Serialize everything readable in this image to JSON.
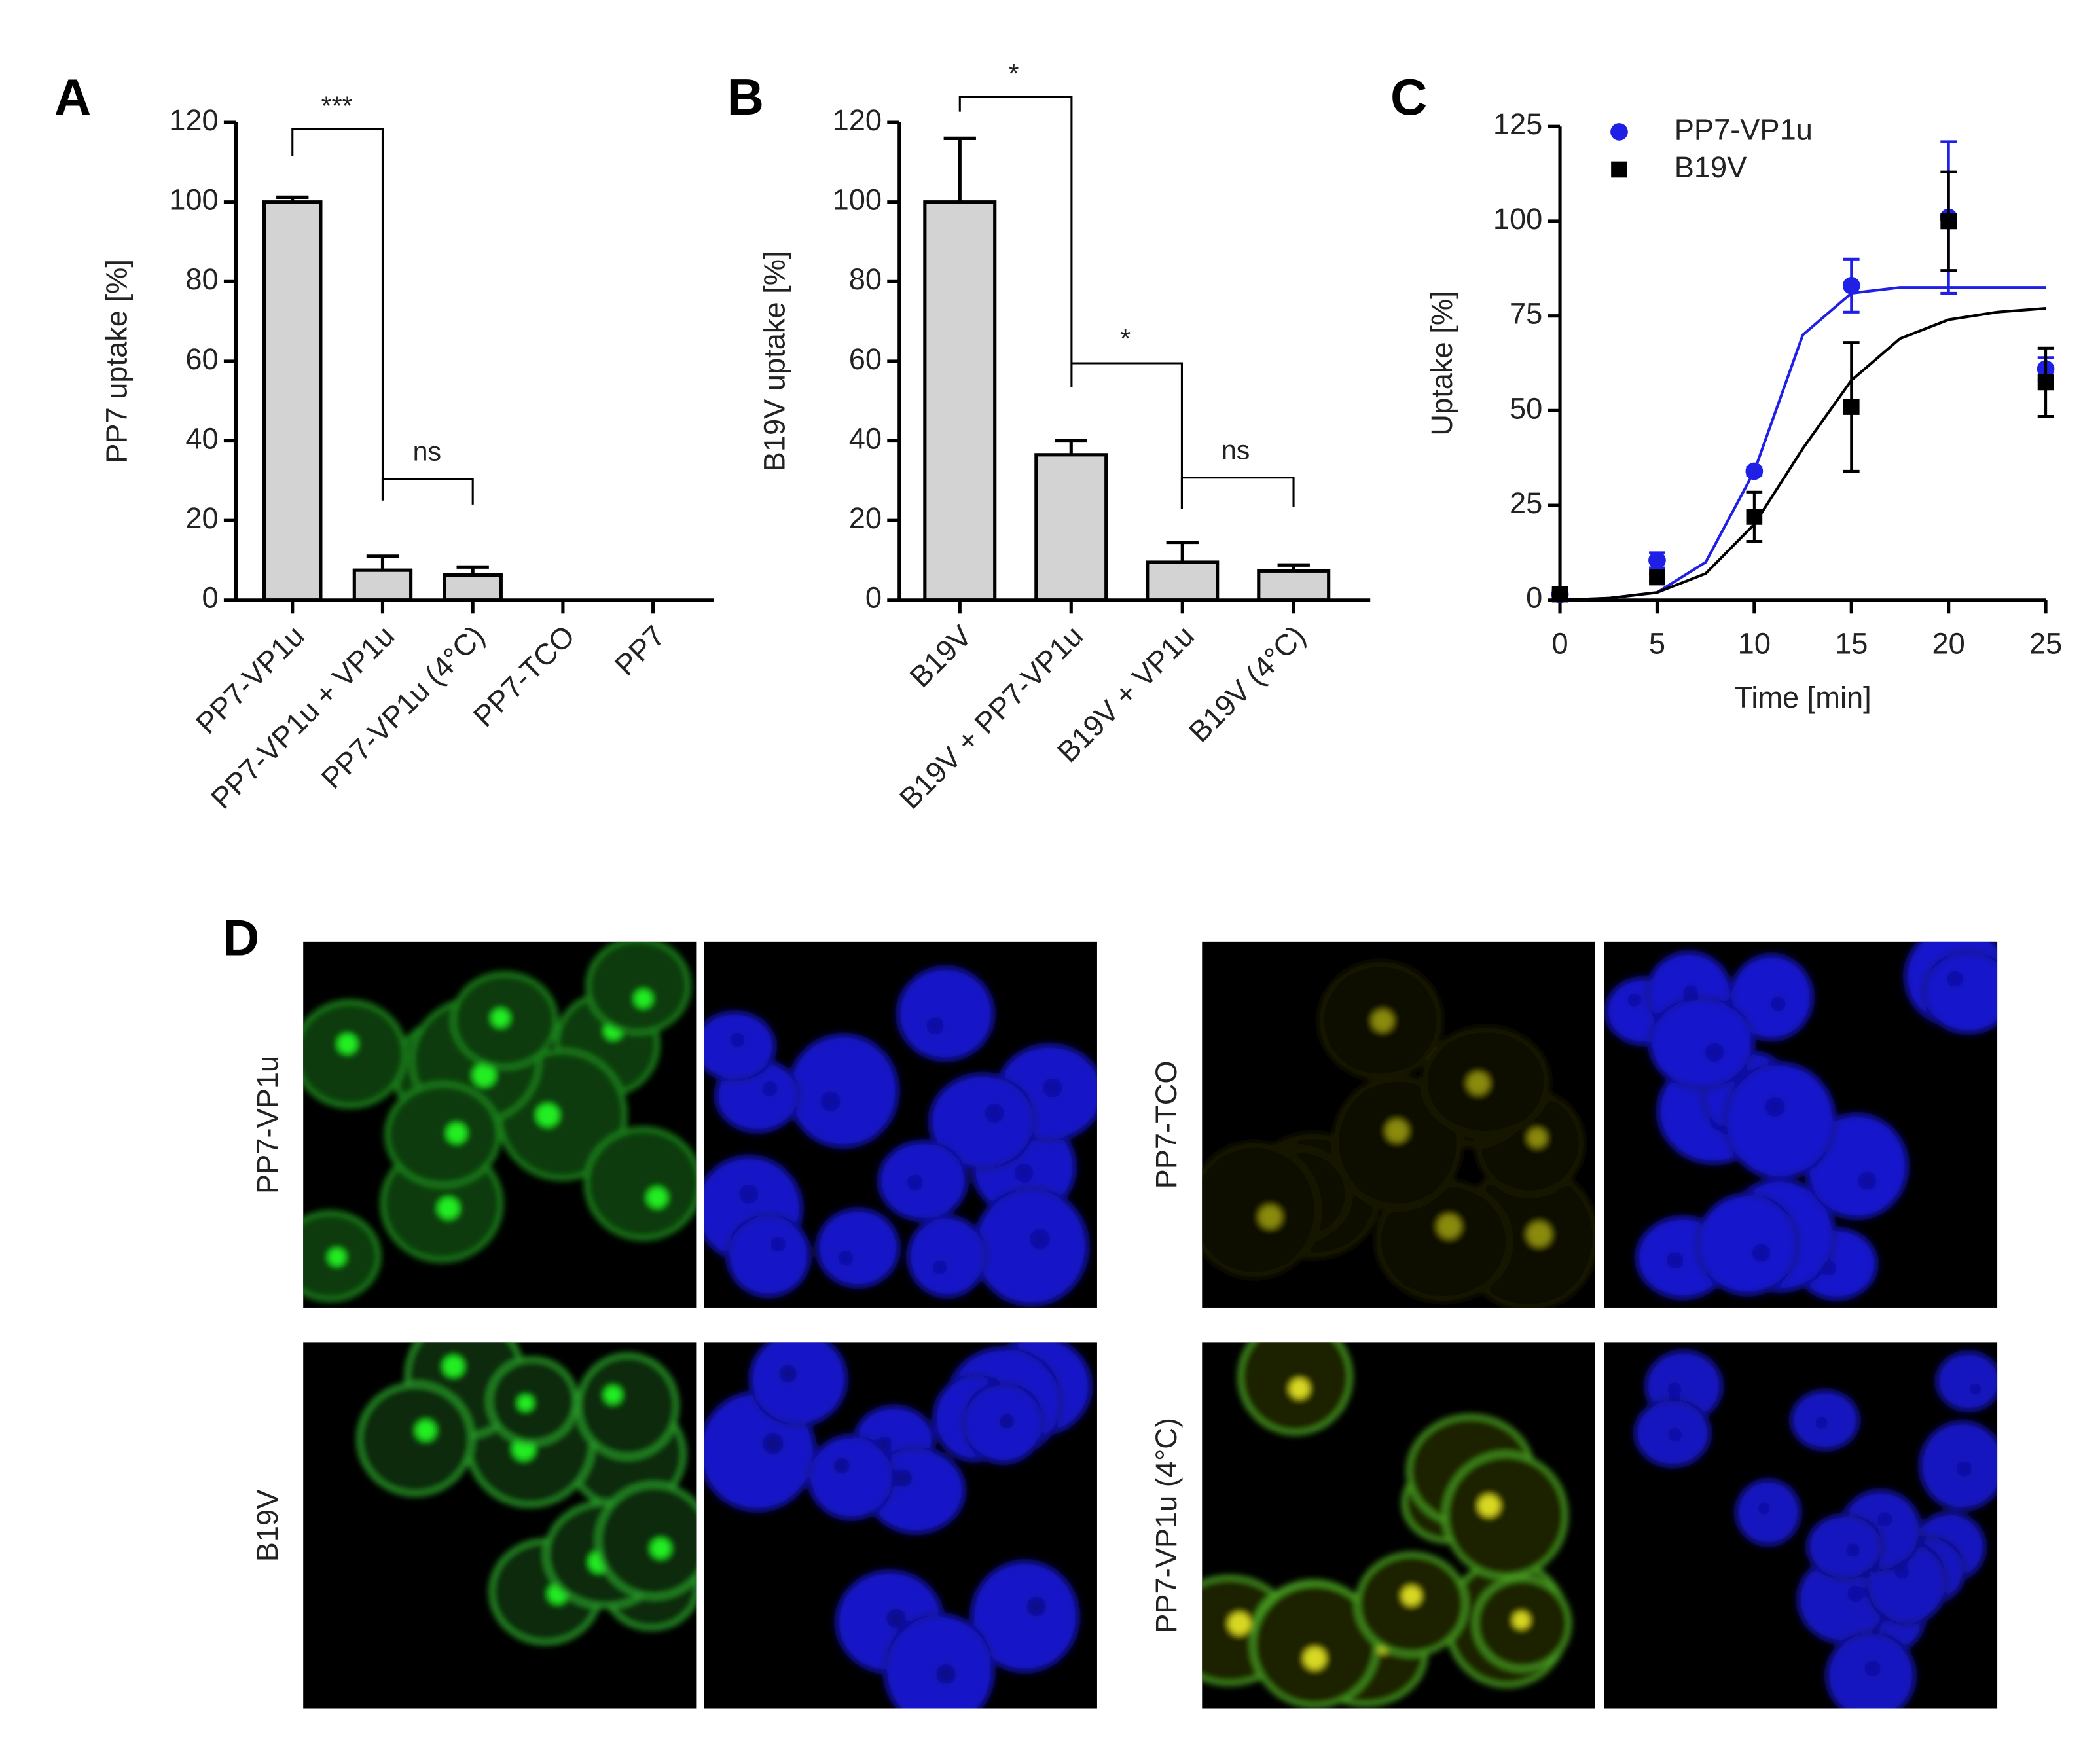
{
  "chart_data": [
    {
      "type": "bar",
      "panel": "A",
      "ylabel": "PP7 uptake [%]",
      "categories": [
        "PP7-VP1u",
        "PP7-VP1u + VP1u",
        "PP7-VP1u (4°C)",
        "PP7-TCO",
        "PP7"
      ],
      "values": [
        100,
        7.5,
        6.3,
        0,
        0
      ],
      "errors": [
        1.2,
        3.5,
        2,
        null,
        null
      ],
      "color": "#d3d3d3",
      "ylim": [
        0,
        120
      ],
      "yticks": [
        0,
        20,
        40,
        60,
        80,
        100,
        120
      ],
      "annotations": [
        "***",
        "ns"
      ]
    },
    {
      "type": "bar",
      "panel": "B",
      "ylabel": "B19V uptake [%]",
      "categories": [
        "B19V",
        "B19V + PP7-VP1u",
        "B19V + VP1u",
        "B19V (4°C)"
      ],
      "values": [
        100,
        36.5,
        9.5,
        7.3
      ],
      "errors": [
        16,
        3.5,
        5,
        1.5
      ],
      "color": "#d3d3d3",
      "ylim": [
        0,
        120
      ],
      "yticks": [
        0,
        20,
        40,
        60,
        80,
        100,
        120
      ],
      "annotations": [
        "*",
        "*",
        "ns"
      ]
    },
    {
      "type": "scatter",
      "panel": "C",
      "xlabel": "Time [min]",
      "ylabel": "Uptake [%]",
      "x": [
        0,
        5,
        10,
        15,
        20,
        25
      ],
      "fit_x": [
        0,
        2.5,
        5,
        7.5,
        10,
        12.5,
        15,
        17.5,
        20,
        22.5,
        25
      ],
      "series": [
        {
          "name": "PP7-VP1u",
          "color": "#1f1fe6",
          "marker": "circle",
          "values": [
            1.5,
            10.5,
            34,
            83,
            101,
            61
          ],
          "errors": [
            1,
            2,
            1,
            7,
            20,
            3
          ],
          "fit": [
            0,
            0.5,
            2,
            10,
            34,
            70,
            81,
            82.5,
            82.5,
            82.5,
            82.5
          ]
        },
        {
          "name": "B19V",
          "color": "#000000",
          "marker": "square",
          "values": [
            1.5,
            6,
            22,
            51,
            100,
            57.5
          ],
          "errors": [
            1,
            1,
            6.5,
            17,
            13,
            9
          ],
          "fit": [
            0,
            0.5,
            2,
            7,
            20,
            40,
            58,
            69,
            74,
            76,
            77
          ]
        }
      ],
      "xlim": [
        0,
        25
      ],
      "xticks": [
        0,
        5,
        10,
        15,
        20,
        25
      ],
      "ylim": [
        0,
        125
      ],
      "yticks": [
        0,
        25,
        50,
        75,
        100,
        125
      ]
    }
  ],
  "panel_d": {
    "label": "D",
    "rows": [
      {
        "left": "PP7-VP1u",
        "right": "PP7-TCO"
      },
      {
        "left": "B19V",
        "right": "PP7-VP1u (4°C)"
      }
    ]
  }
}
